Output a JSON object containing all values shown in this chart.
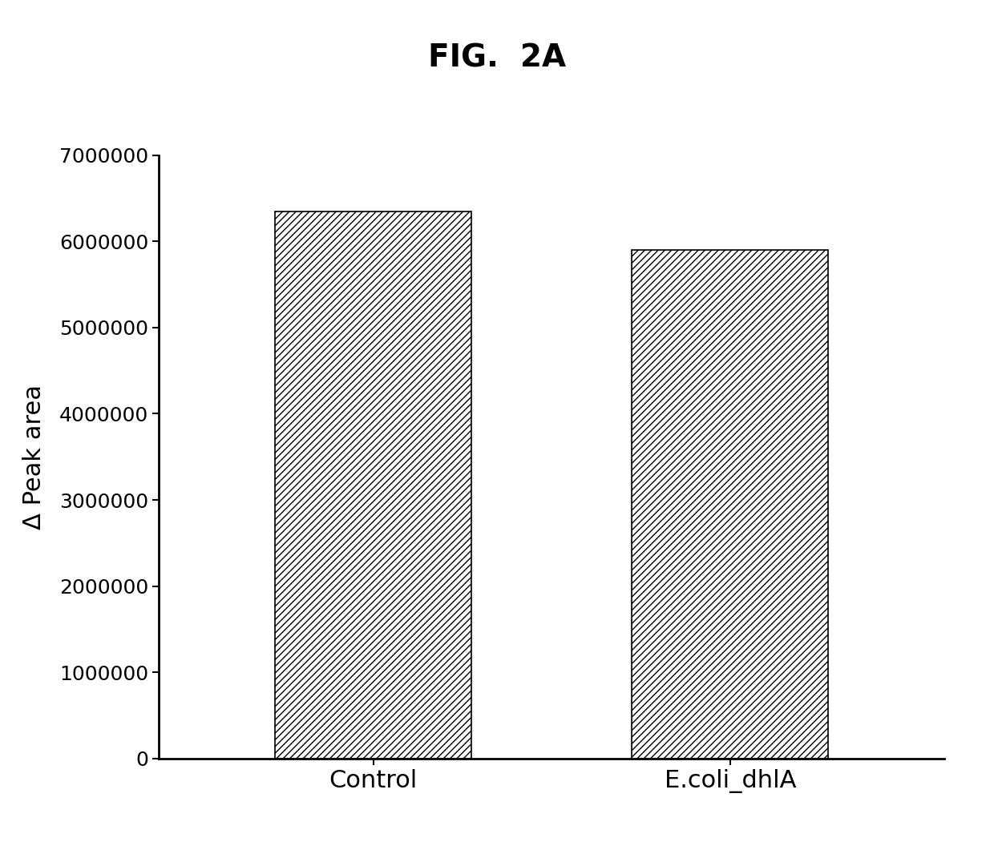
{
  "title": "FIG.  2A",
  "categories": [
    "Control",
    "E.coli_dhlA"
  ],
  "values": [
    6350000,
    5900000
  ],
  "ylabel": "Δ Peak area",
  "ylim": [
    0,
    7000000
  ],
  "yticks": [
    0,
    1000000,
    2000000,
    3000000,
    4000000,
    5000000,
    6000000,
    7000000
  ],
  "ytick_labels": [
    "0",
    "1000000",
    "2000000",
    "3000000",
    "4000000",
    "5000000",
    "6000000",
    "7000000"
  ],
  "bar_color": "#ffffff",
  "bar_edgecolor": "#000000",
  "hatch_pattern": "////",
  "background_color": "#ffffff",
  "title_fontsize": 28,
  "axis_label_fontsize": 22,
  "tick_fontsize": 18,
  "xtick_fontsize": 22,
  "bar_width": 0.55,
  "x_positions": [
    1,
    2
  ],
  "xlim": [
    0.4,
    2.6
  ]
}
